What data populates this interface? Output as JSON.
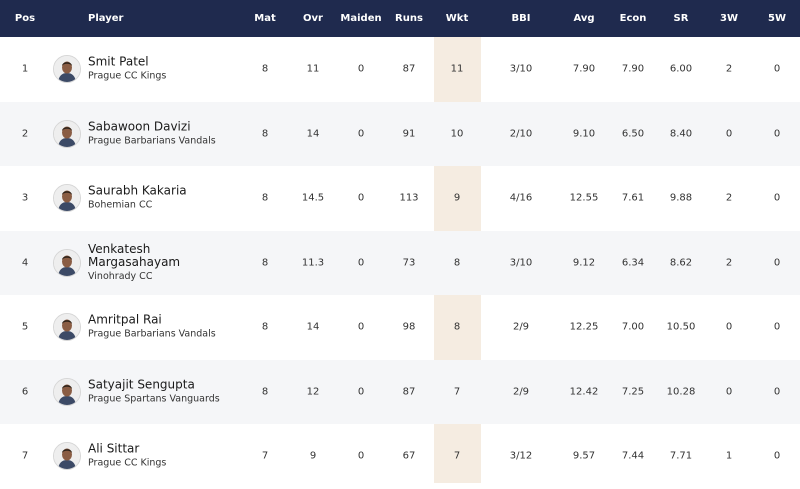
{
  "columns": [
    "Pos",
    "Player",
    "Mat",
    "Ovr",
    "Maiden",
    "Runs",
    "Wkt",
    "BBI",
    "Avg",
    "Econ",
    "SR",
    "3W",
    "5W"
  ],
  "rows": [
    {
      "pos": "1",
      "name": "Smit Patel",
      "team": "Prague CC Kings",
      "mat": "8",
      "ovr": "11",
      "maiden": "0",
      "runs": "87",
      "wkt": "11",
      "bbi": "3/10",
      "avg": "7.90",
      "econ": "7.90",
      "sr": "6.00",
      "w3": "2",
      "w5": "0"
    },
    {
      "pos": "2",
      "name": "Sabawoon Davizi",
      "team": "Prague Barbarians Vandals",
      "mat": "8",
      "ovr": "14",
      "maiden": "0",
      "runs": "91",
      "wkt": "10",
      "bbi": "2/10",
      "avg": "9.10",
      "econ": "6.50",
      "sr": "8.40",
      "w3": "0",
      "w5": "0"
    },
    {
      "pos": "3",
      "name": "Saurabh Kakaria",
      "team": "Bohemian CC",
      "mat": "8",
      "ovr": "14.5",
      "maiden": "0",
      "runs": "113",
      "wkt": "9",
      "bbi": "4/16",
      "avg": "12.55",
      "econ": "7.61",
      "sr": "9.88",
      "w3": "2",
      "w5": "0"
    },
    {
      "pos": "4",
      "name": "Venkatesh Margasahayam",
      "team": "Vinohrady CC",
      "mat": "8",
      "ovr": "11.3",
      "maiden": "0",
      "runs": "73",
      "wkt": "8",
      "bbi": "3/10",
      "avg": "9.12",
      "econ": "6.34",
      "sr": "8.62",
      "w3": "2",
      "w5": "0"
    },
    {
      "pos": "5",
      "name": "Amritpal Rai",
      "team": "Prague Barbarians Vandals",
      "mat": "8",
      "ovr": "14",
      "maiden": "0",
      "runs": "98",
      "wkt": "8",
      "bbi": "2/9",
      "avg": "12.25",
      "econ": "7.00",
      "sr": "10.50",
      "w3": "0",
      "w5": "0"
    },
    {
      "pos": "6",
      "name": "Satyajit Sengupta",
      "team": "Prague Spartans Vanguards",
      "mat": "8",
      "ovr": "12",
      "maiden": "0",
      "runs": "87",
      "wkt": "7",
      "bbi": "2/9",
      "avg": "12.42",
      "econ": "7.25",
      "sr": "10.28",
      "w3": "0",
      "w5": "0"
    },
    {
      "pos": "7",
      "name": "Ali Sittar",
      "team": "Prague CC Kings",
      "mat": "7",
      "ovr": "9",
      "maiden": "0",
      "runs": "67",
      "wkt": "7",
      "bbi": "3/12",
      "avg": "9.57",
      "econ": "7.44",
      "sr": "7.71",
      "w3": "1",
      "w5": "0"
    }
  ]
}
